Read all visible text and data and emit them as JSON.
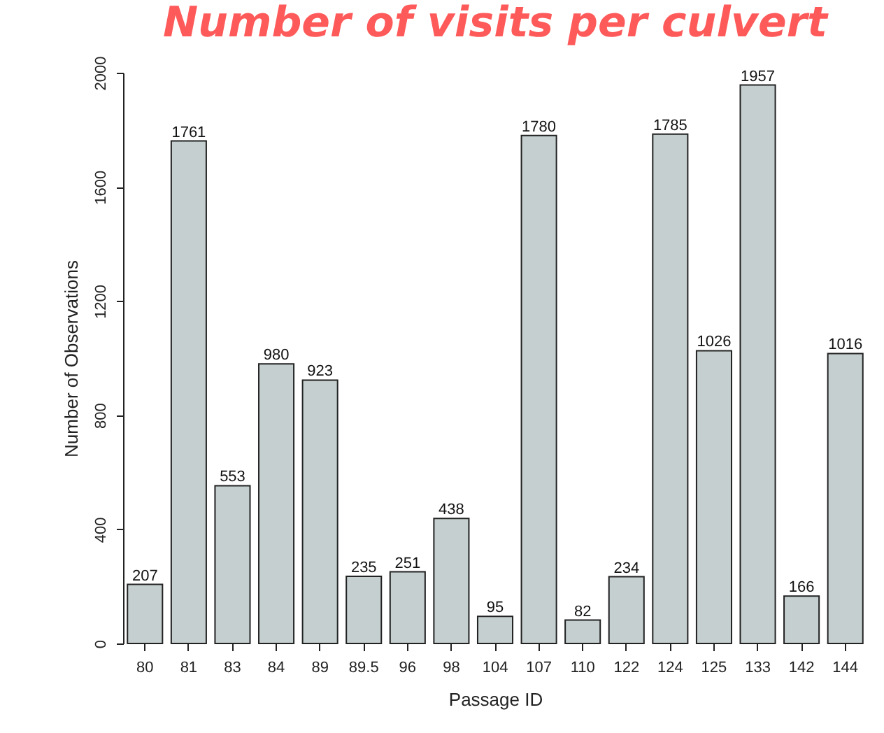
{
  "chart_data": {
    "type": "bar",
    "title": "Number of visits per culvert",
    "xlabel": "Passage ID",
    "ylabel": "Number of Observations",
    "categories": [
      "80",
      "81",
      "83",
      "84",
      "89",
      "89.5",
      "96",
      "98",
      "104",
      "107",
      "110",
      "122",
      "124",
      "125",
      "133",
      "142",
      "144"
    ],
    "values": [
      207,
      1761,
      553,
      980,
      923,
      235,
      251,
      438,
      95,
      1780,
      82,
      234,
      1785,
      1026,
      1957,
      166,
      1016
    ],
    "color": "#c5cfcf",
    "ylim": [
      0,
      2000
    ],
    "yticks": [
      0,
      400,
      800,
      1200,
      1600,
      2000
    ],
    "data_labels": true,
    "grid": false
  }
}
